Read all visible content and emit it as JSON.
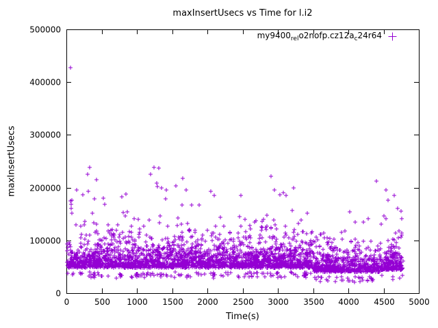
{
  "chart_data": {
    "type": "scatter",
    "title": "maxInsertUsecs vs Time for l.i2",
    "xlabel": "Time(s)",
    "ylabel": "maxInsertUsecs",
    "xlim": [
      0,
      5000
    ],
    "ylim": [
      0,
      500000
    ],
    "xticks": [
      0,
      500,
      1000,
      1500,
      2000,
      2500,
      3000,
      3500,
      4000,
      4500,
      5000
    ],
    "yticks": [
      0,
      100000,
      200000,
      300000,
      400000,
      500000
    ],
    "grid": false,
    "legend_position": "top-right-inside",
    "marker": "plus",
    "point_color": "#9400d3",
    "axis_color": "#000000",
    "background_color": "#ffffff",
    "series_label_segments": [
      {
        "text": "my9400",
        "sub": false
      },
      {
        "text": "rel",
        "sub": true
      },
      {
        "text": "o2nofp.cz12a",
        "sub": false
      },
      {
        "text": "c",
        "sub": true
      },
      {
        "text": "24r64",
        "sub": false
      }
    ],
    "outliers": [
      [
        55,
        428000
      ],
      [
        60,
        175000
      ],
      [
        70,
        168000
      ],
      [
        65,
        160000
      ],
      [
        80,
        152000
      ],
      [
        150,
        196000
      ],
      [
        230,
        186000
      ],
      [
        300,
        225000
      ],
      [
        330,
        238000
      ],
      [
        430,
        215000
      ],
      [
        520,
        180000
      ],
      [
        840,
        188000
      ],
      [
        1190,
        225000
      ],
      [
        1240,
        238000
      ],
      [
        1310,
        237000
      ],
      [
        1280,
        208000
      ],
      [
        1350,
        200000
      ],
      [
        1420,
        195000
      ],
      [
        1650,
        218000
      ],
      [
        1700,
        195000
      ],
      [
        2050,
        193000
      ],
      [
        2100,
        185000
      ],
      [
        2480,
        185000
      ],
      [
        2900,
        222000
      ],
      [
        2950,
        195000
      ],
      [
        3080,
        190000
      ],
      [
        3120,
        185000
      ],
      [
        4400,
        212000
      ],
      [
        4650,
        185000
      ],
      [
        4700,
        160000
      ],
      [
        4750,
        155000
      ]
    ],
    "cloud": {
      "seed": 1337,
      "n": 3200,
      "x_min": 5,
      "x_max": 4780,
      "y_floor_main": 40000,
      "y_floor_dip": 32000,
      "y_floor_end": 36000,
      "dip_start": 3500,
      "dip_end": 4450,
      "dip_scale": 0.78,
      "end_scale": 0.9,
      "core_spread": 16000,
      "wide_spread": 30000,
      "core_prob": 0.72,
      "base_offset": 8000,
      "tail_cap": 4.8,
      "tail_soften": 0.3,
      "low_straggler_prob": 0.05,
      "low_straggler_depth": 11000
    }
  }
}
